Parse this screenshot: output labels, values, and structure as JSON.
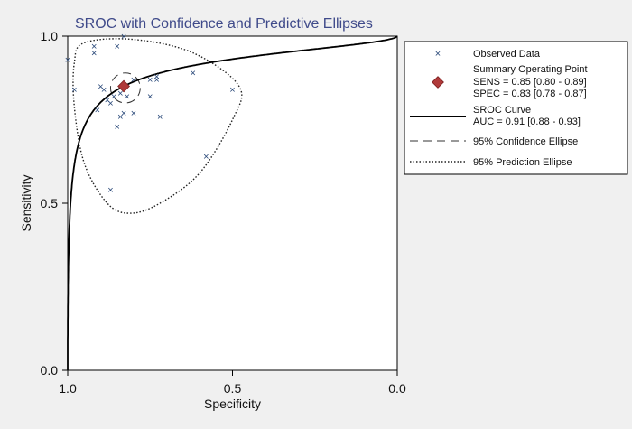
{
  "chart_data": {
    "type": "scatter",
    "title": "SROC with Confidence and Predictive Ellipses",
    "xlabel": "Specificity",
    "ylabel": "Sensitivity",
    "xlim": [
      1.0,
      0.0
    ],
    "ylim": [
      0.0,
      1.0
    ],
    "x_reversed": true,
    "x_ticks": [
      "1.0",
      "0.5",
      "0.0"
    ],
    "y_ticks": [
      "0.0",
      "0.5",
      "1.0"
    ],
    "grid": false,
    "legend_position": "right",
    "colors": {
      "observed": "#2b4a7a",
      "summary": "#b03a3a",
      "title": "#3f4a8a"
    },
    "observed": [
      {
        "spec": 1.0,
        "sens": 0.93
      },
      {
        "spec": 0.98,
        "sens": 0.84
      },
      {
        "spec": 0.92,
        "sens": 0.97
      },
      {
        "spec": 0.92,
        "sens": 0.95
      },
      {
        "spec": 0.85,
        "sens": 0.97
      },
      {
        "spec": 0.83,
        "sens": 1.0
      },
      {
        "spec": 0.9,
        "sens": 0.85
      },
      {
        "spec": 0.89,
        "sens": 0.84
      },
      {
        "spec": 0.88,
        "sens": 0.81
      },
      {
        "spec": 0.91,
        "sens": 0.78
      },
      {
        "spec": 0.87,
        "sens": 0.8
      },
      {
        "spec": 0.86,
        "sens": 0.82
      },
      {
        "spec": 0.84,
        "sens": 0.83
      },
      {
        "spec": 0.82,
        "sens": 0.82
      },
      {
        "spec": 0.84,
        "sens": 0.76
      },
      {
        "spec": 0.83,
        "sens": 0.77
      },
      {
        "spec": 0.8,
        "sens": 0.77
      },
      {
        "spec": 0.85,
        "sens": 0.73
      },
      {
        "spec": 0.8,
        "sens": 0.87
      },
      {
        "spec": 0.75,
        "sens": 0.87
      },
      {
        "spec": 0.73,
        "sens": 0.88
      },
      {
        "spec": 0.73,
        "sens": 0.87
      },
      {
        "spec": 0.75,
        "sens": 0.82
      },
      {
        "spec": 0.72,
        "sens": 0.76
      },
      {
        "spec": 0.62,
        "sens": 0.89
      },
      {
        "spec": 0.5,
        "sens": 0.84
      },
      {
        "spec": 0.58,
        "sens": 0.64
      },
      {
        "spec": 0.87,
        "sens": 0.54
      }
    ],
    "summary_point": {
      "spec": 0.83,
      "sens": 0.85
    },
    "auc": 0.91,
    "confidence_ellipse": {
      "spec_range": [
        0.78,
        0.87
      ],
      "sens_range": [
        0.8,
        0.89
      ]
    },
    "prediction_ellipse": {
      "points": [
        {
          "spec": 0.95,
          "sens": 0.98
        },
        {
          "spec": 0.8,
          "sens": 0.99
        },
        {
          "spec": 0.62,
          "sens": 0.95
        },
        {
          "spec": 0.48,
          "sens": 0.85
        },
        {
          "spec": 0.5,
          "sens": 0.75
        },
        {
          "spec": 0.6,
          "sens": 0.59
        },
        {
          "spec": 0.72,
          "sens": 0.5
        },
        {
          "spec": 0.81,
          "sens": 0.47
        },
        {
          "spec": 0.88,
          "sens": 0.5
        },
        {
          "spec": 0.95,
          "sens": 0.62
        },
        {
          "spec": 0.98,
          "sens": 0.79
        },
        {
          "spec": 0.98,
          "sens": 0.92
        }
      ]
    },
    "legend": {
      "observed": "Observed Data",
      "summary_title": "Summary Operating Point",
      "summary_sens": "SENS = 0.85 [0.80 - 0.89]",
      "summary_spec": "SPEC = 0.83 [0.78 - 0.87]",
      "sroc_title": "SROC Curve",
      "sroc_auc": "AUC = 0.91 [0.88 - 0.93]",
      "confidence": "95% Confidence Ellipse",
      "prediction": "95% Prediction Ellipse"
    }
  }
}
